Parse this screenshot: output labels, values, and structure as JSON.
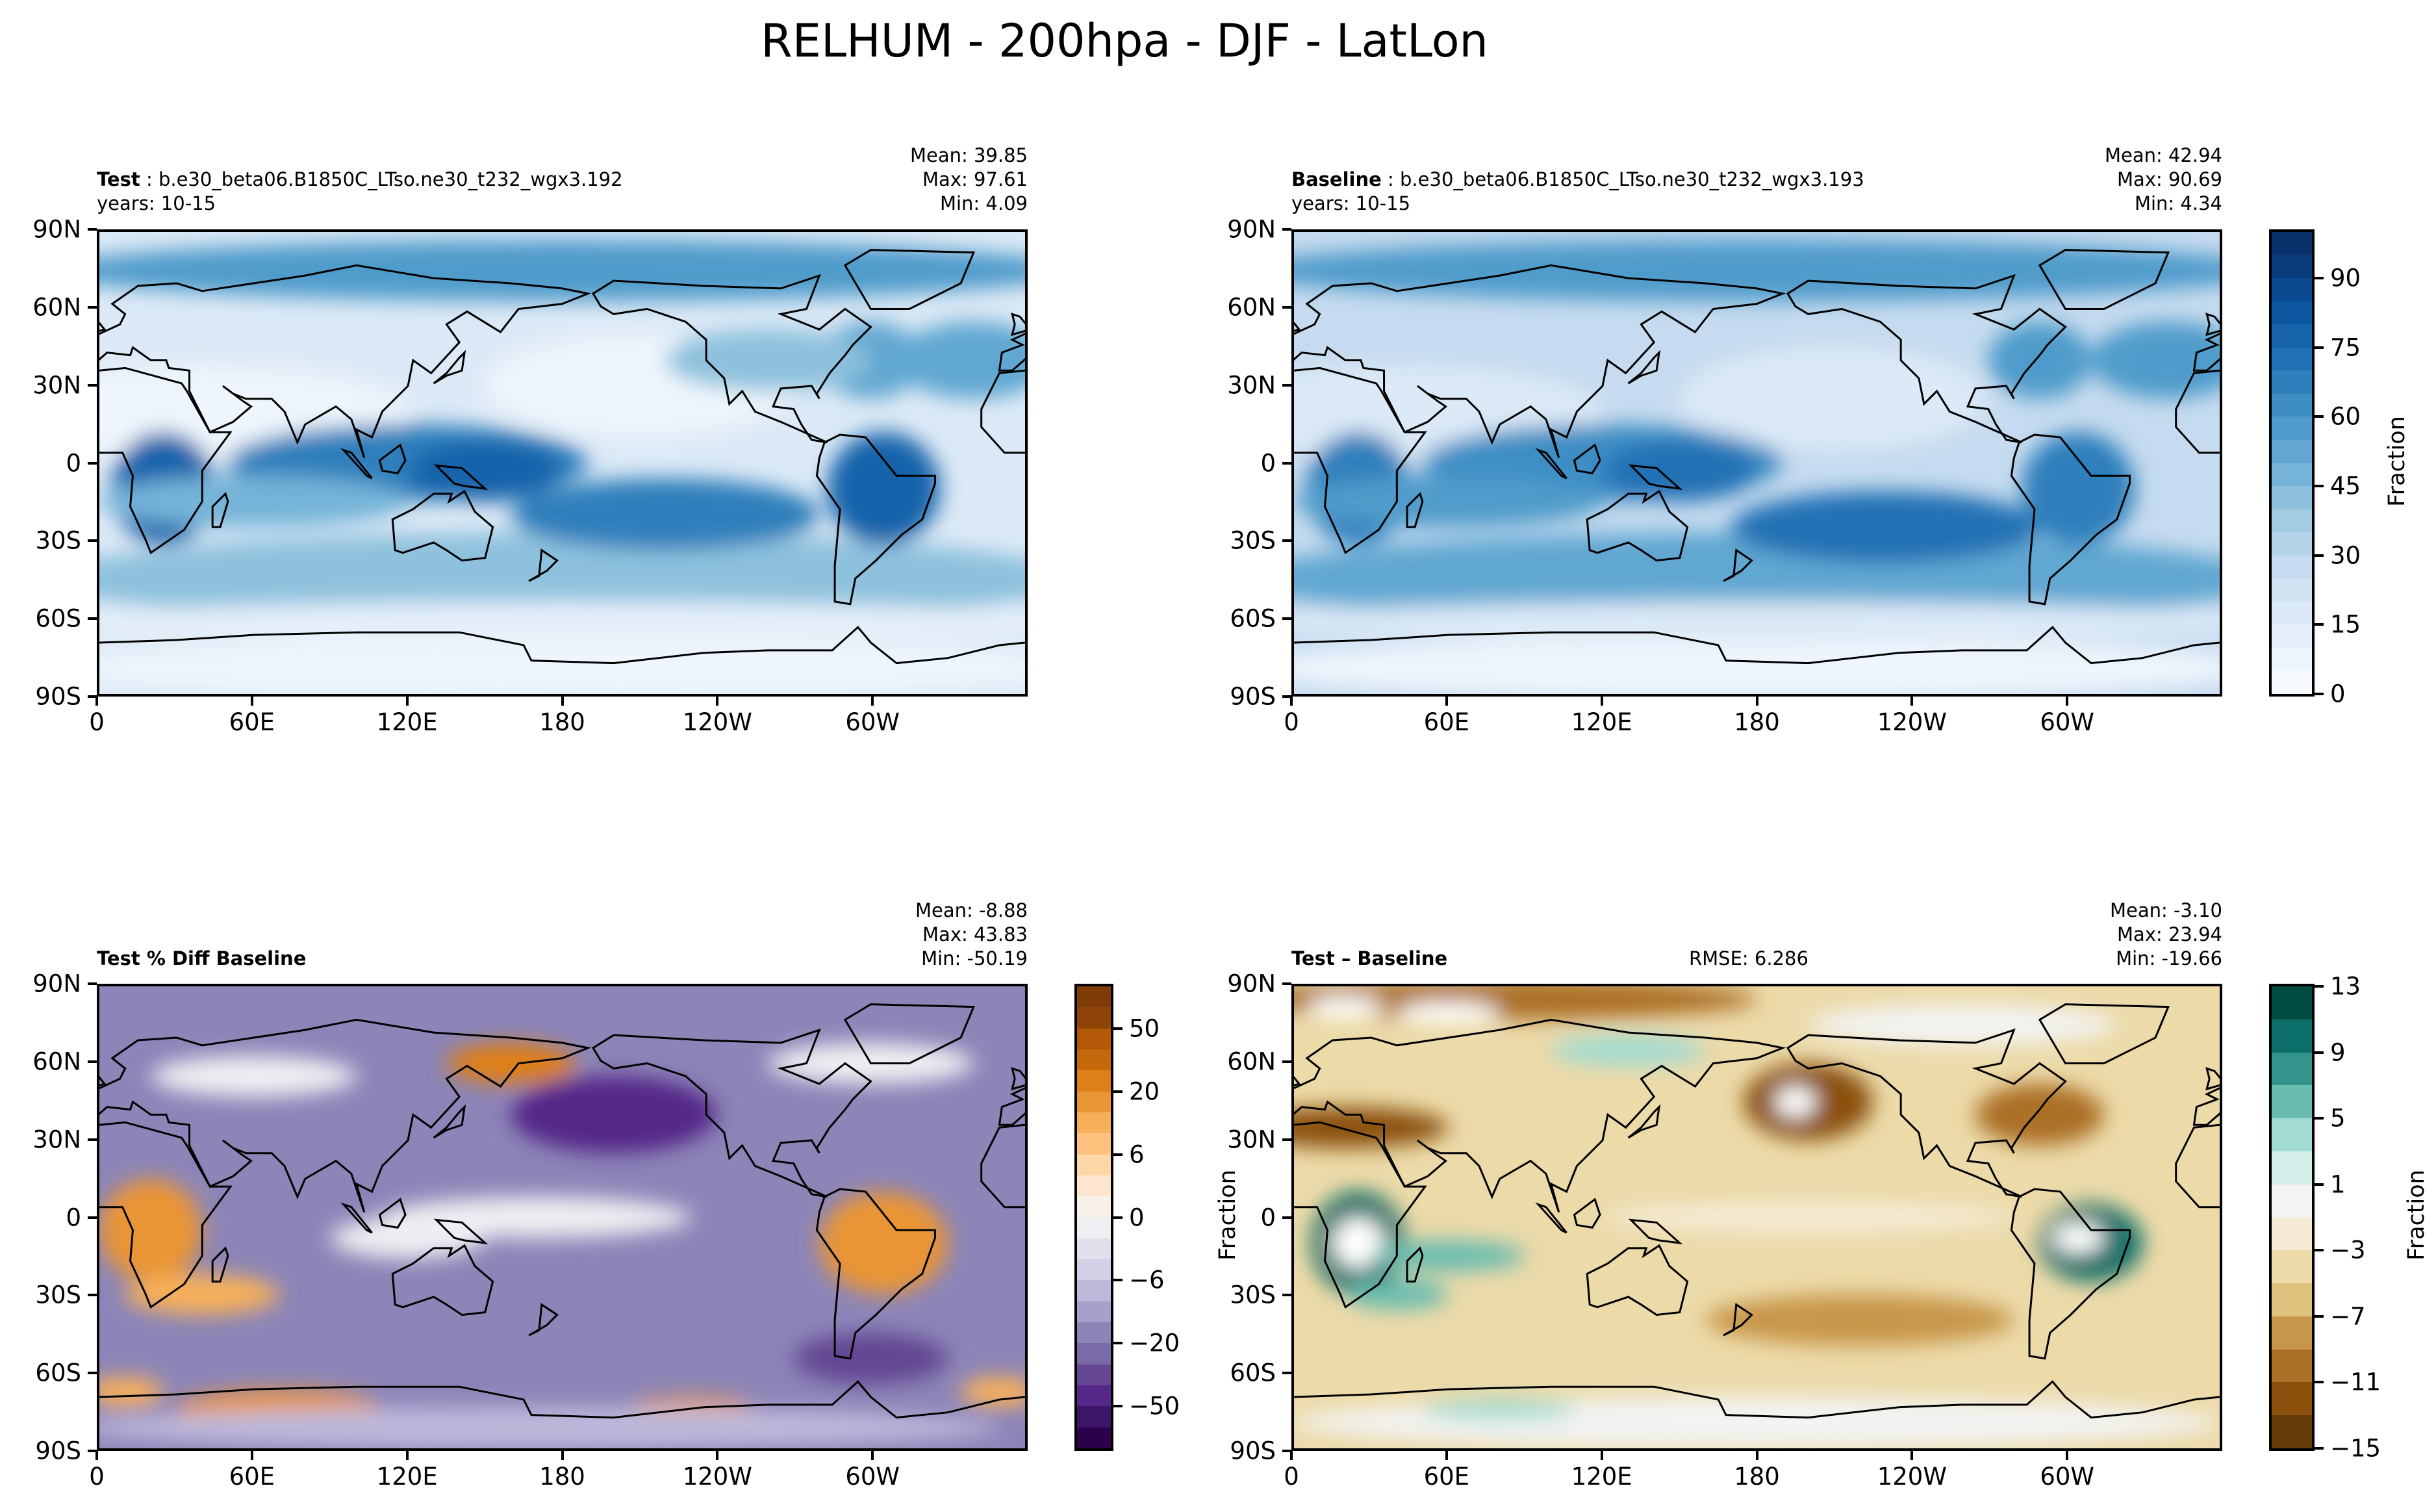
{
  "title": "RELHUM - 200hpa - DJF - LatLon",
  "chart_data": {
    "type": "heatmap",
    "title": "RELHUM - 200hpa - DJF - LatLon",
    "x_ticks": [
      "0",
      "60E",
      "120E",
      "180",
      "120W",
      "60W"
    ],
    "y_ticks": [
      "90N",
      "60N",
      "30N",
      "0",
      "30S",
      "60S",
      "90S"
    ],
    "xlim": [
      0,
      360
    ],
    "ylim": [
      -90,
      90
    ],
    "panels": [
      {
        "id": "test",
        "label_bold": "Test",
        "label_rest": " : b.e30_beta06.B1850C_LTso.ne30_t232_wgx3.192",
        "years": "years: 10-15",
        "mean": "Mean: 39.85",
        "max": "Max: 97.61",
        "min": "Min:  4.09"
      },
      {
        "id": "baseline",
        "label_bold": "Baseline",
        "label_rest": " : b.e30_beta06.B1850C_LTso.ne30_t232_wgx3.193",
        "years": "years: 10-15",
        "mean": "Mean: 42.94",
        "max": "Max: 90.69",
        "min": "Min:  4.34"
      },
      {
        "id": "pctdiff",
        "label_bold": "Test % Diff Baseline",
        "mean": "Mean: -8.88",
        "max": "Max: 43.83",
        "min": "Min: -50.19"
      },
      {
        "id": "diff",
        "label_bold": "Test – Baseline",
        "rmse": "RMSE: 6.286",
        "mean": "Mean: -3.10",
        "max": "Max: 23.94",
        "min": "Min: -19.66",
        "ylabel": "Fraction"
      }
    ],
    "colorbars": [
      {
        "id": "main",
        "label": "Fraction",
        "levels": [
          0,
          5,
          10,
          15,
          20,
          25,
          30,
          35,
          40,
          45,
          50,
          55,
          60,
          65,
          70,
          75,
          80,
          85,
          90,
          95,
          100
        ],
        "ticks": [
          "0",
          "15",
          "30",
          "45",
          "60",
          "75",
          "90"
        ],
        "tick_values": [
          0,
          15,
          30,
          45,
          60,
          75,
          90
        ],
        "colors": [
          "#f7fbff",
          "#eef5fc",
          "#e5eff9",
          "#dce9f6",
          "#d1e2f3",
          "#c6dbef",
          "#b6d4e9",
          "#a3cce3",
          "#8dc1dd",
          "#75b4d8",
          "#61a7d2",
          "#4f9bcb",
          "#3e8ec4",
          "#2f7fbc",
          "#2171b5",
          "#1764ab",
          "#0d57a1",
          "#08498f",
          "#083c7d",
          "#08306b"
        ]
      },
      {
        "id": "pctdiff",
        "label": "",
        "levels": [
          -100,
          -70,
          -50,
          -40,
          -30,
          -20,
          -15,
          -10,
          -6,
          -4,
          -2,
          0,
          2,
          4,
          6,
          10,
          15,
          20,
          30,
          40,
          50,
          70,
          100
        ],
        "ticks": [
          "−50",
          "−20",
          "−6",
          "0",
          "6",
          "20",
          "50"
        ],
        "tick_values": [
          -50,
          -20,
          -6,
          0,
          6,
          20,
          50
        ],
        "colors": [
          "#2d004b",
          "#3d1566",
          "#542788",
          "#644693",
          "#7a6aa6",
          "#8c85b8",
          "#a7a0cb",
          "#bdb9db",
          "#d1d0e6",
          "#e1e1ee",
          "#eeeff2",
          "#f8f1e9",
          "#fde6cd",
          "#fed7a6",
          "#fdc27e",
          "#f7b05a",
          "#ea9536",
          "#df7f17",
          "#c56a0c",
          "#b35806",
          "#8f4408",
          "#7f3b08"
        ]
      },
      {
        "id": "diff",
        "label": "Fraction",
        "levels": [
          -15,
          -13,
          -11,
          -9,
          -7,
          -5,
          -3,
          -1,
          1,
          3,
          5,
          7,
          9,
          11,
          13
        ],
        "ticks": [
          "−15",
          "−11",
          "−7",
          "−3",
          "1",
          "5",
          "9",
          "13"
        ],
        "tick_values": [
          -15,
          -11,
          -7,
          -3,
          1,
          5,
          9,
          13
        ],
        "colors": [
          "#653c09",
          "#8b510c",
          "#ac6f26",
          "#c7964a",
          "#dfc27d",
          "#ecdaa9",
          "#f5ebd5",
          "#f2f3f2",
          "#d3ede8",
          "#a3dcd2",
          "#69bcb0",
          "#33948b",
          "#0b6e68",
          "#004c40"
        ]
      }
    ]
  }
}
